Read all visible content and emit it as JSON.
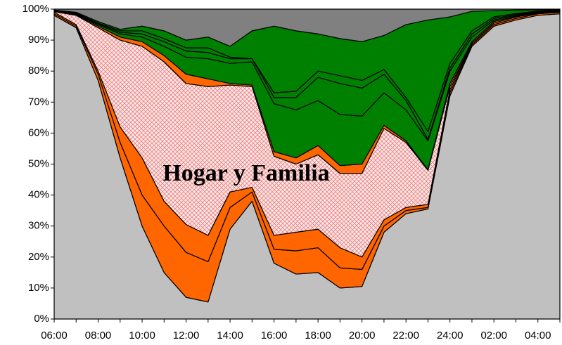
{
  "chart_data": {
    "type": "stacked_area",
    "categories": [
      "06:00",
      null,
      "08:00",
      null,
      "10:00",
      null,
      "12:00",
      null,
      "14:00",
      null,
      "16:00",
      null,
      "18:00",
      null,
      "20:00",
      null,
      "22:00",
      null,
      "24:00",
      null,
      "02:00",
      null,
      "04:00",
      null
    ],
    "series": [
      {
        "color": "#c0c0c0",
        "values": [
          98,
          94,
          77,
          52,
          30,
          15,
          7,
          5.5,
          29,
          38,
          18,
          14.5,
          15,
          10,
          10.5,
          28,
          34,
          35.5,
          72,
          88,
          94.5,
          96.5,
          98,
          98.5
        ]
      },
      {
        "color": "#ff6600",
        "values": [
          0.5,
          0.5,
          2,
          5,
          10,
          15,
          14.5,
          13,
          7,
          3,
          4.5,
          7.5,
          8,
          6.5,
          5.5,
          2,
          1,
          0.5,
          1,
          0.5,
          0.5,
          0.5,
          0.5,
          0.5
        ]
      },
      {
        "color": "#ff6600",
        "values": [
          0.5,
          0.5,
          1,
          5,
          12,
          8,
          9,
          8.5,
          5,
          1.5,
          4.5,
          6,
          6,
          6.5,
          4,
          2,
          1,
          1,
          1,
          0.5,
          0.5,
          0.5,
          0.2,
          0.2
        ]
      },
      {
        "name": "Hogar y Familia",
        "color": "#ffe6e6",
        "pattern": "crosshatch",
        "values": [
          0.2,
          3,
          14,
          28,
          36,
          45,
          45.5,
          48,
          34.5,
          32.5,
          25.5,
          22,
          24,
          24,
          27,
          29.5,
          21,
          11,
          1,
          0,
          0,
          0,
          0.1,
          0.1
        ]
      },
      {
        "color": "#ff6600",
        "values": [
          0.1,
          0.2,
          0.5,
          1,
          1.5,
          2,
          3,
          2.5,
          0.5,
          0.5,
          1.5,
          2,
          3,
          2.5,
          3,
          1,
          0.5,
          0.2,
          1,
          0.5,
          0.5,
          0.2,
          0.1,
          0.1
        ]
      },
      {
        "color": "#008000",
        "values": [
          0.1,
          0.2,
          0.5,
          1,
          1.5,
          3,
          5.5,
          6.5,
          6.5,
          7.5,
          15.5,
          15.5,
          14.5,
          16.5,
          15.5,
          10.5,
          10,
          9.3,
          4,
          1.5,
          0.5,
          0.3,
          0.1,
          0.1
        ]
      },
      {
        "color": "#008000",
        "values": [
          0.1,
          0.2,
          0.3,
          0.5,
          1,
          1.5,
          2,
          2,
          1.5,
          1,
          2,
          4,
          7.5,
          10,
          9,
          6,
          3,
          0.5,
          1,
          1,
          0.5,
          0.3,
          0.2,
          0.1
        ]
      },
      {
        "color": "#008000",
        "values": [
          0.1,
          0.2,
          0.2,
          0.5,
          1,
          1,
          1,
          1.5,
          0.5,
          0,
          1.5,
          2,
          2,
          2.5,
          2.5,
          1.5,
          1,
          2.5,
          1.5,
          1,
          0.5,
          0.3,
          0.2,
          0.1
        ]
      },
      {
        "color": "#008000",
        "values": [
          0.1,
          0.2,
          0.5,
          0.5,
          1.5,
          2.5,
          2.5,
          3.5,
          3.5,
          9,
          21.5,
          19.5,
          12,
          12,
          12.5,
          11,
          23.5,
          36,
          15,
          6.3,
          2,
          1.1,
          0.4,
          0.2
        ]
      },
      {
        "color": "#808080",
        "values": [
          0.3,
          1,
          4,
          6.5,
          5.5,
          7,
          10,
          9,
          12,
          7,
          5.5,
          7,
          8,
          9.5,
          10.5,
          8.5,
          5,
          3.5,
          2.5,
          0.7,
          0.5,
          0.3,
          0.2,
          0.1
        ]
      }
    ],
    "ylim": [
      0,
      100
    ],
    "yticks": [
      {
        "value": 0,
        "label": "0%"
      },
      {
        "value": 10,
        "label": "10%"
      },
      {
        "value": 20,
        "label": "20%"
      },
      {
        "value": 30,
        "label": "30%"
      },
      {
        "value": 40,
        "label": "40%"
      },
      {
        "value": 50,
        "label": "50%"
      },
      {
        "value": 60,
        "label": "60%"
      },
      {
        "value": 70,
        "label": "70%"
      },
      {
        "value": 80,
        "label": "80%"
      },
      {
        "value": 90,
        "label": "90%"
      },
      {
        "value": 100,
        "label": "100%"
      }
    ],
    "grid": false
  }
}
